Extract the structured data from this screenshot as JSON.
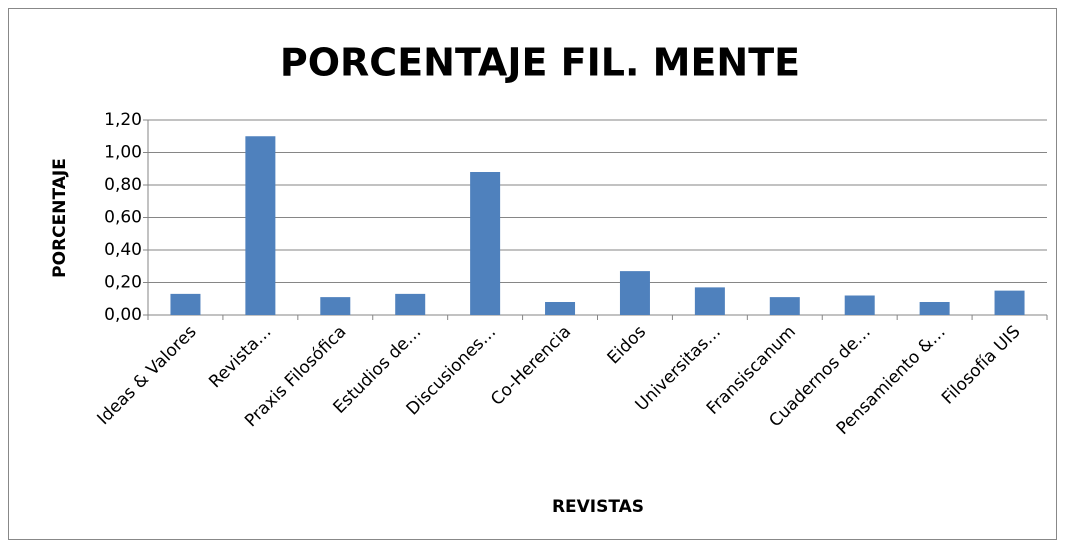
{
  "chart_data": {
    "type": "bar",
    "title": "PORCENTAJE FIL. MENTE",
    "x_label": "REVISTAS",
    "y_label": "PORCENTAJE",
    "categories": [
      "Ideas & Valores",
      "Revista…",
      "Praxis Filosófica",
      "Estudios de…",
      "Discusiones…",
      "Co-Herencia",
      "Eidos",
      "Universitas…",
      "Fransiscanum",
      "Cuadernos de…",
      "Pensamiento &…",
      "Filosofía UIS"
    ],
    "values": [
      0.13,
      1.1,
      0.11,
      0.13,
      0.88,
      0.08,
      0.27,
      0.17,
      0.11,
      0.12,
      0.08,
      0.15
    ],
    "color": "#4f81bd",
    "ylim": [
      0,
      1.2
    ],
    "yticks": [
      {
        "value": 0,
        "label": "0,00"
      },
      {
        "value": 0.2,
        "label": "0,20"
      },
      {
        "value": 0.4,
        "label": "0,40"
      },
      {
        "value": 0.6,
        "label": "0,60"
      },
      {
        "value": 0.8,
        "label": "0,80"
      },
      {
        "value": 1.0,
        "label": "1,00"
      },
      {
        "value": 1.2,
        "label": "1,20"
      }
    ],
    "grid": true
  }
}
